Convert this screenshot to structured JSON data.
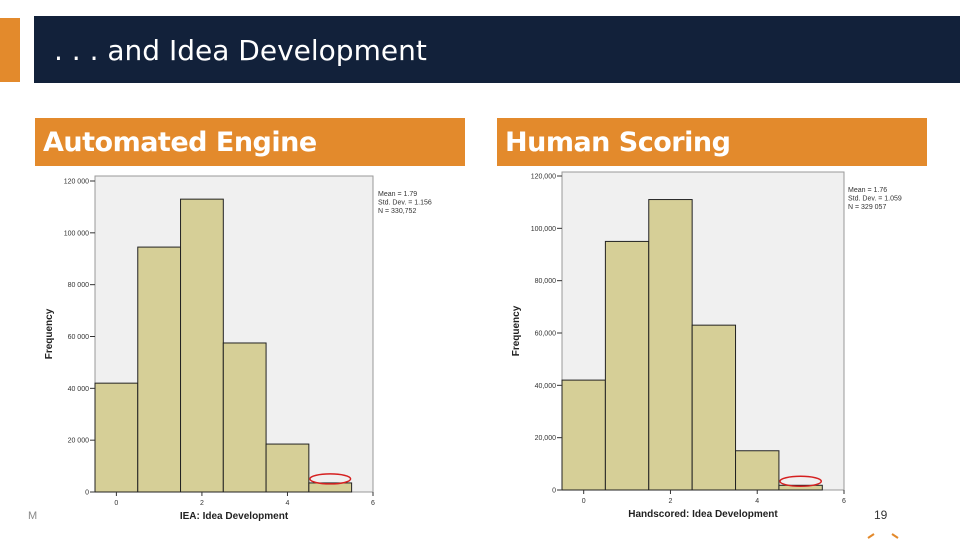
{
  "slide": {
    "title": ". . . and Idea Development",
    "page_number": "19",
    "footer_initial": "M",
    "accent_color": "#e38a2c",
    "title_bar_color": "#12213a"
  },
  "panels": [
    {
      "header": "Automated Engine"
    },
    {
      "header": "Human Scoring"
    }
  ],
  "chart_data": [
    {
      "type": "bar",
      "title": "Automated Engine",
      "xlabel": "IEA: Idea Development",
      "ylabel": "Frequency",
      "categories": [
        "0",
        "1",
        "2",
        "3",
        "4",
        "5"
      ],
      "x_ticks": [
        "0",
        "2",
        "4",
        "6"
      ],
      "x_range": [
        -0.5,
        6
      ],
      "values": [
        42000,
        94500,
        113000,
        57500,
        18500,
        3500
      ],
      "y_ticks": [
        "0",
        "20 000",
        "40 000",
        "60 000",
        "80 000",
        "100 000",
        "120 000"
      ],
      "ylim": [
        0,
        120000
      ],
      "stats": [
        "Mean = 1.79",
        "Std. Dev. = 1.156",
        "N = 330,752"
      ],
      "bar_color": "#d6cf97",
      "highlight_category": "5",
      "grid": false
    },
    {
      "type": "bar",
      "title": "Human Scoring",
      "xlabel": "Handscored: Idea Development",
      "ylabel": "Frequency",
      "categories": [
        "0",
        "1",
        "2",
        "3",
        "4",
        "5"
      ],
      "x_ticks": [
        "0",
        "2",
        "4",
        "6"
      ],
      "x_range": [
        -0.5,
        6
      ],
      "values": [
        42000,
        95000,
        111000,
        63000,
        15000,
        1800
      ],
      "y_ticks": [
        "0",
        "20,000",
        "40,000",
        "60,000",
        "80,000",
        "100,000",
        "120,000"
      ],
      "ylim": [
        0,
        120000
      ],
      "stats": [
        "Mean = 1.76",
        "Std. Dev. = 1.059",
        "N = 329 057"
      ],
      "bar_color": "#d6cf97",
      "highlight_category": "5",
      "grid": false
    }
  ]
}
